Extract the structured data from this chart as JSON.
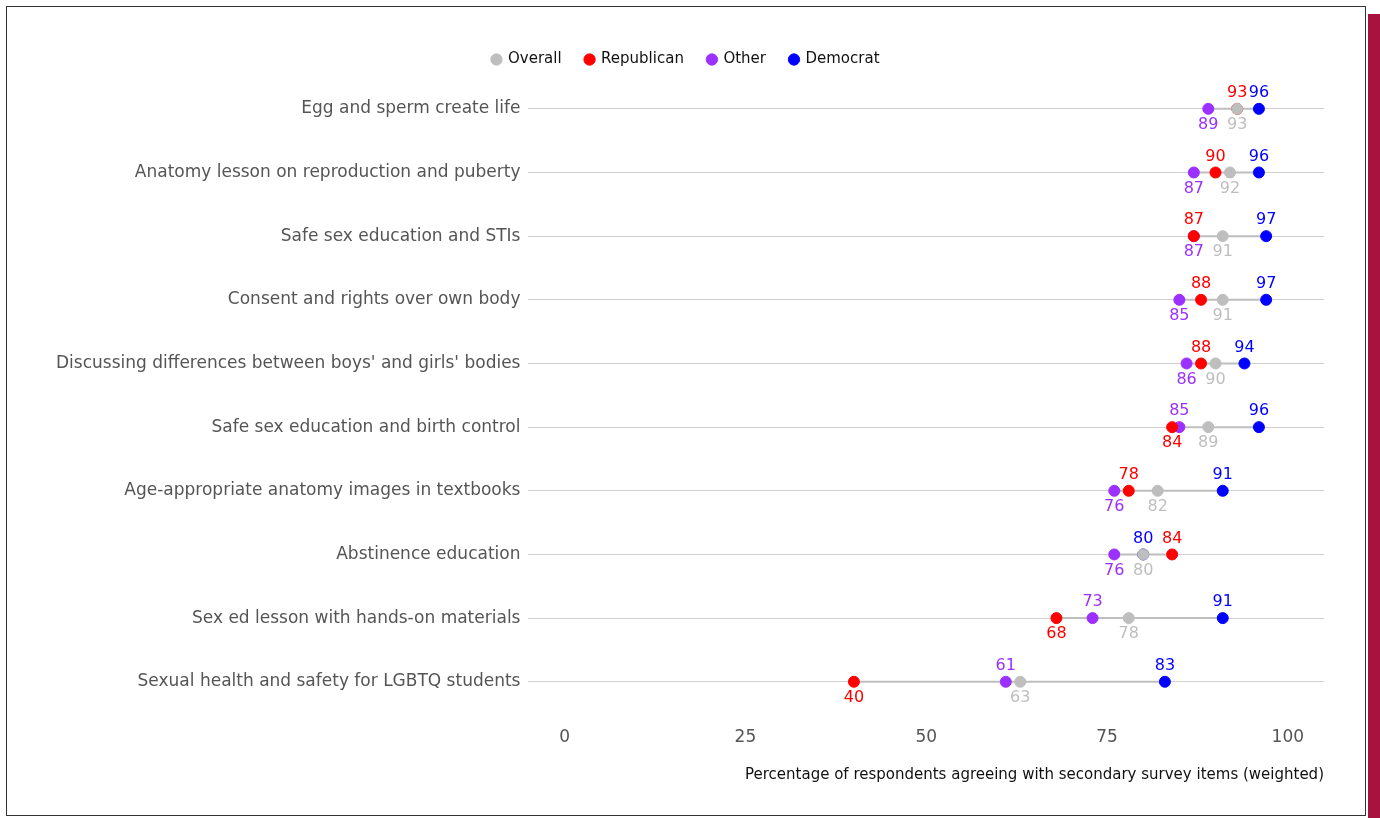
{
  "chart_data": {
    "type": "scatter",
    "orientation": "horizontal",
    "xlabel": "Percentage of respondents agreeing with secondary survey items (weighted)",
    "categories": [
      "Egg and sperm create life",
      "Anatomy lesson on reproduction and puberty",
      "Safe sex education and STIs",
      "Consent and rights over own body",
      "Discussing differences between boys' and girls' bodies",
      "Safe sex education and birth control",
      "Age-appropriate anatomy images in textbooks",
      "Abstinence education",
      "Sex ed lesson with hands-on materials",
      "Sexual health and safety for LGBTQ students"
    ],
    "series": [
      {
        "name": "Overall",
        "color": "#bebebe",
        "values": [
          93,
          92,
          91,
          91,
          90,
          89,
          82,
          80,
          78,
          63
        ]
      },
      {
        "name": "Republican",
        "color": "#ff0000",
        "values": [
          93,
          90,
          87,
          88,
          88,
          84,
          78,
          84,
          68,
          40
        ]
      },
      {
        "name": "Other",
        "color": "#9b30ff",
        "values": [
          89,
          87,
          87,
          85,
          86,
          85,
          76,
          76,
          73,
          61
        ]
      },
      {
        "name": "Democrat",
        "color": "#0000ff",
        "values": [
          96,
          96,
          97,
          97,
          94,
          96,
          91,
          80,
          91,
          83
        ]
      }
    ],
    "xlim": [
      -5,
      105
    ],
    "xticks": [
      0,
      25,
      50,
      75,
      100
    ],
    "grid": "y",
    "legend": "top",
    "marker": "circle",
    "data_labels": true
  }
}
